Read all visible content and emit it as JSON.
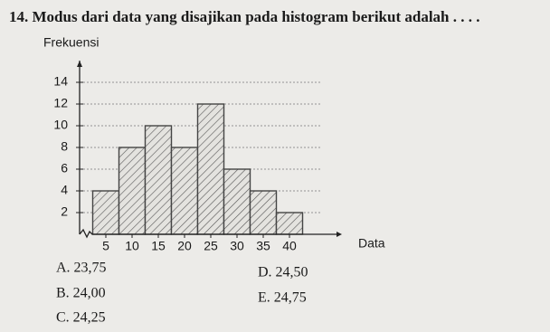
{
  "question": "14. Modus dari data yang disajikan pada histogram berikut adalah . . . .",
  "chart_data": {
    "type": "histogram",
    "ylabel": "Frekuensi",
    "xlabel": "Data",
    "bins": [
      2.5,
      7.5,
      12.5,
      17.5,
      22.5,
      27.5,
      32.5,
      37.5,
      42.5
    ],
    "values": [
      4,
      8,
      10,
      8,
      12,
      6,
      4,
      2
    ],
    "xlim": [
      0,
      50
    ],
    "xticks": [
      5,
      10,
      15,
      20,
      25,
      30,
      35,
      40
    ],
    "ylim": [
      0,
      16
    ],
    "yticks": [
      2,
      4,
      6,
      8,
      10,
      12,
      14
    ],
    "grid": true,
    "color": "#444444"
  },
  "options": [
    "A. 23,75",
    "B. 24,00",
    "C. 24,25",
    "D. 24,50",
    "E. 24,75"
  ]
}
